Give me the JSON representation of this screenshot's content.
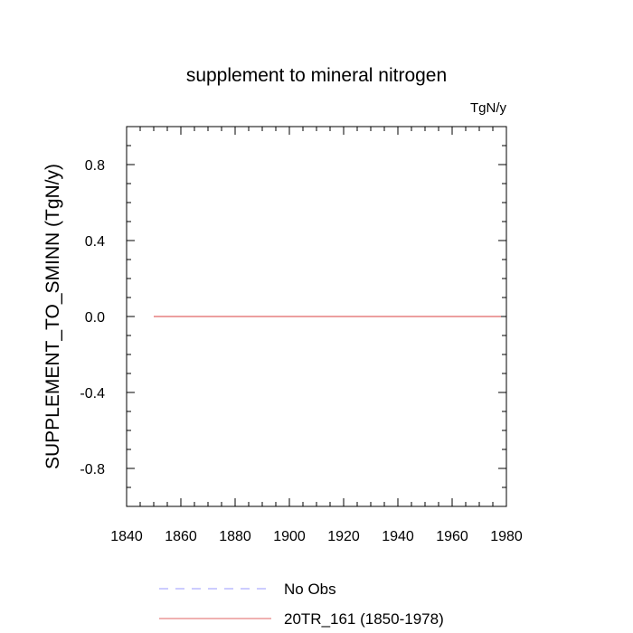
{
  "chart_data": {
    "type": "line",
    "title": "supplement to mineral nitrogen",
    "units": "TgN/y",
    "ylabel": "SUPPLEMENT_TO_SMINN  (TgN/y)",
    "xlabel": "",
    "xlim": [
      1840,
      1980
    ],
    "ylim": [
      -1.0,
      1.0
    ],
    "x_ticks": [
      1840,
      1860,
      1880,
      1900,
      1920,
      1940,
      1960,
      1980
    ],
    "x_tick_labels": [
      "1840",
      "1860",
      "1880",
      "1900",
      "1920",
      "1940",
      "1960",
      "1980"
    ],
    "y_ticks": [
      -0.8,
      -0.4,
      0.0,
      0.4,
      0.8
    ],
    "y_tick_labels": [
      "-0.8",
      "-0.4",
      "0.0",
      "0.4",
      "0.8"
    ],
    "series": [
      {
        "name": "20TR_161 (1850-1978)",
        "color": "#e06666",
        "style": "solid",
        "x": [
          1850,
          1978
        ],
        "y": [
          0.0,
          0.0
        ]
      }
    ],
    "legend": [
      {
        "label": "No Obs",
        "color": "#9999ff",
        "style": "dashed"
      },
      {
        "label": "20TR_161 (1850-1978)",
        "color": "#e06666",
        "style": "solid"
      }
    ],
    "legend_position": "bottom",
    "grid": false
  }
}
